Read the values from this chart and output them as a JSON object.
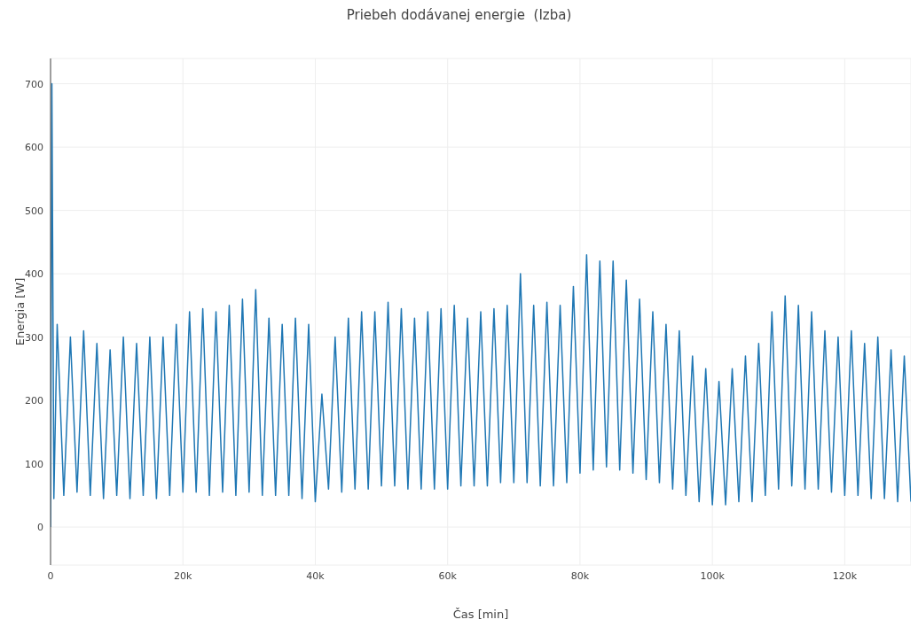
{
  "chart_data": {
    "type": "line",
    "title": "Priebeh dodávanej energie  (Izba)",
    "xlabel": "Čas [min]",
    "ylabel": "Energia [W]",
    "x": [
      0,
      200,
      500,
      1000,
      2000,
      3000,
      4000,
      5000,
      6000,
      7000,
      8000,
      9000,
      10000,
      11000,
      12000,
      13000,
      14000,
      15000,
      16000,
      17000,
      18000,
      19000,
      20000,
      21000,
      22000,
      23000,
      24000,
      25000,
      26000,
      27000,
      28000,
      29000,
      30000,
      31000,
      32000,
      33000,
      34000,
      35000,
      36000,
      37000,
      38000,
      39000,
      40000,
      41000,
      42000,
      43000,
      44000,
      45000,
      46000,
      47000,
      48000,
      49000,
      50000,
      51000,
      52000,
      53000,
      54000,
      55000,
      56000,
      57000,
      58000,
      59000,
      60000,
      61000,
      62000,
      63000,
      64000,
      65000,
      66000,
      67000,
      68000,
      69000,
      70000,
      71000,
      72000,
      73000,
      74000,
      75000,
      76000,
      77000,
      78000,
      79000,
      80000,
      81000,
      82000,
      83000,
      84000,
      85000,
      86000,
      87000,
      88000,
      89000,
      90000,
      91000,
      92000,
      93000,
      94000,
      95000,
      96000,
      97000,
      98000,
      99000,
      100000,
      101000,
      102000,
      103000,
      104000,
      105000,
      106000,
      107000,
      108000,
      109000,
      110000,
      111000,
      112000,
      113000,
      114000,
      115000,
      116000,
      117000,
      118000,
      119000,
      120000,
      121000,
      122000,
      123000,
      124000,
      125000,
      126000,
      127000,
      128000,
      129000,
      130000
    ],
    "series": [
      {
        "color": "#1f77b4",
        "values": [
          0,
          700,
          45,
          320,
          50,
          300,
          55,
          310,
          50,
          290,
          45,
          280,
          50,
          300,
          45,
          290,
          50,
          300,
          45,
          300,
          50,
          320,
          55,
          340,
          55,
          345,
          50,
          340,
          55,
          350,
          50,
          360,
          55,
          375,
          50,
          330,
          50,
          320,
          50,
          330,
          45,
          320,
          40,
          210,
          60,
          300,
          55,
          330,
          60,
          340,
          60,
          340,
          65,
          355,
          65,
          345,
          60,
          330,
          60,
          340,
          60,
          345,
          60,
          350,
          65,
          330,
          65,
          340,
          65,
          345,
          70,
          350,
          70,
          400,
          70,
          350,
          65,
          355,
          65,
          350,
          70,
          380,
          85,
          430,
          90,
          420,
          95,
          420,
          90,
          390,
          85,
          360,
          75,
          340,
          70,
          320,
          60,
          310,
          50,
          270,
          40,
          250,
          35,
          230,
          35,
          250,
          40,
          270,
          40,
          290,
          50,
          340,
          60,
          365,
          65,
          350,
          60,
          340,
          60,
          310,
          55,
          300,
          50,
          310,
          50,
          290,
          45,
          300,
          45,
          280,
          40,
          270,
          40
        ]
      }
    ],
    "xlim": [
      0,
      130000
    ],
    "ylim": [
      -60,
      740
    ],
    "xticks": [
      0,
      {
        "value": 20000,
        "label": "20k"
      },
      {
        "value": 40000,
        "label": "40k"
      },
      {
        "value": 60000,
        "label": "60k"
      },
      {
        "value": 80000,
        "label": "80k"
      },
      {
        "value": 100000,
        "label": "100k"
      },
      {
        "value": 120000,
        "label": "120k"
      }
    ],
    "yticks": [
      0,
      100,
      200,
      300,
      400,
      500,
      600,
      700
    ],
    "grid": true,
    "marker": "none",
    "line_style": "solid"
  }
}
